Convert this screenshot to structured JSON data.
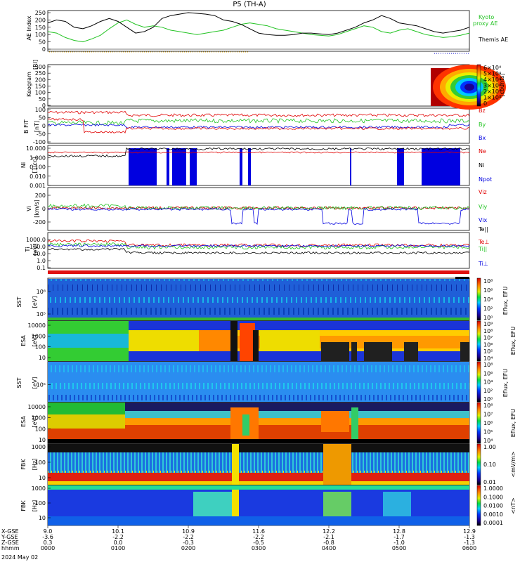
{
  "chart_data": {
    "type": "line",
    "title": "P5 (TH-A)",
    "date_label": "2024 May 02",
    "x_ticks": {
      "xgse": [
        "9.0",
        "10.1",
        "10.9",
        "11.6",
        "12.2",
        "12.8",
        "12.9"
      ],
      "ygse": [
        "-3.6",
        "-2.2",
        "-2.2",
        "-2.2",
        "-2.1",
        "-1.7",
        "-1.3"
      ],
      "zgse": [
        "0.3",
        "0.0",
        "-0.3",
        "-0.5",
        "-0.8",
        "-1.0",
        "-1.3"
      ],
      "hhmm": [
        "0000",
        "0100",
        "0200",
        "0300",
        "0400",
        "0500",
        "0600"
      ]
    },
    "x_row_labels": [
      "X-GSE",
      "Y-GSE",
      "Z-GSE",
      "hhmm"
    ],
    "panels": [
      {
        "id": "ae",
        "ylabel": "AE Index",
        "yticks": [
          "250",
          "200",
          "150",
          "100",
          "50",
          "0"
        ],
        "legend": [
          {
            "text": "Kyoto",
            "color": "#22c322"
          },
          {
            "text": "proxy AE",
            "color": "#22c322"
          },
          {
            "text": "Themis AE",
            "color": "#000000"
          }
        ],
        "series": [
          {
            "name": "Kyoto proxy AE",
            "color": "#22c322",
            "values": [
              120,
              110,
              80,
              60,
              50,
              70,
              95,
              140,
              180,
              200,
              170,
              150,
              160,
              150,
              130,
              120,
              110,
              100,
              110,
              120,
              130,
              150,
              170,
              180,
              170,
              160,
              140,
              130,
              120,
              110,
              100,
              95,
              90,
              100,
              120,
              140,
              160,
              150,
              120,
              110,
              130,
              140,
              120,
              100,
              90,
              80,
              85,
              95,
              110
            ]
          },
          {
            "name": "Themis AE",
            "color": "#000000",
            "values": [
              180,
              200,
              190,
              150,
              140,
              160,
              190,
              210,
              190,
              150,
              110,
              120,
              150,
              210,
              230,
              240,
              250,
              245,
              240,
              230,
              200,
              190,
              170,
              140,
              110,
              100,
              95,
              95,
              100,
              110,
              110,
              105,
              100,
              110,
              130,
              150,
              180,
              200,
              230,
              210,
              180,
              170,
              160,
              140,
              120,
              110,
              120,
              130,
              150
            ]
          }
        ]
      },
      {
        "id": "keogram",
        "ylabel": "Keogram",
        "yticks": [
          "300",
          "250",
          "200",
          "150",
          "100",
          "50",
          "0"
        ],
        "units": "[Rl]",
        "cbar_labels": [
          "6×10⁴",
          "5×10⁴",
          "4×10⁴",
          "3×10⁴",
          "2×10⁴",
          "1×10⁴",
          "0"
        ],
        "cbar_units": "[counts]"
      },
      {
        "id": "bfield",
        "ylabel": "B FIT",
        "units": "[nT]",
        "yticks": [
          "100",
          "50",
          "0",
          "-50",
          "-100"
        ],
        "legend": [
          {
            "text": "Bz",
            "color": "#e00000"
          },
          {
            "text": "By",
            "color": "#22c322"
          },
          {
            "text": "Bx",
            "color": "#0000e0"
          }
        ]
      },
      {
        "id": "density",
        "ylabel": "Ni",
        "units": "[1/cc]",
        "yticks": [
          "10.000",
          "1.000",
          "0.100",
          "0.010",
          "0.001"
        ],
        "legend": [
          {
            "text": "Ne",
            "color": "#e00000"
          },
          {
            "text": "Ni",
            "color": "#000000"
          },
          {
            "text": "Npot",
            "color": "#0000e0"
          }
        ]
      },
      {
        "id": "velocity",
        "ylabel": "Vi",
        "units": "[km/s]",
        "yticks": [
          "200",
          "0",
          "-200"
        ],
        "legend": [
          {
            "text": "Viz",
            "color": "#e00000"
          },
          {
            "text": "Viy",
            "color": "#22c322"
          },
          {
            "text": "Vix",
            "color": "#0000e0"
          },
          {
            "text": "Te||",
            "color": "#000000"
          }
        ]
      },
      {
        "id": "temperature",
        "ylabel": "Ti",
        "units": "[eV]",
        "yticks": [
          "1000.0",
          "100.0",
          "10.0",
          "1.0",
          "0.1"
        ],
        "legend": [
          {
            "text": "Te⊥",
            "color": "#e00000"
          },
          {
            "text": "Ti||",
            "color": "#22c322"
          },
          {
            "text": "Ti⊥",
            "color": "#0000e0"
          }
        ]
      },
      {
        "id": "sst_e",
        "ylabel": "SST",
        "units": "[eV]",
        "yticks": [
          "10⁶",
          "10⁵"
        ],
        "cbar_labels": [
          "10⁸",
          "10⁶",
          "10⁴",
          "10²",
          "10⁰"
        ],
        "cbar_units": "Eflux, EFU"
      },
      {
        "id": "esa_e",
        "ylabel": "ESA",
        "units": "[eV]",
        "yticks": [
          "10000",
          "1000",
          "100",
          "10"
        ],
        "cbar_labels": [
          "10⁹",
          "10⁸",
          "10⁷",
          "10⁶",
          "10⁵",
          "10⁴"
        ],
        "cbar_units": "Eflux, EFU"
      },
      {
        "id": "sst_i",
        "ylabel": "SST",
        "units": "[eV]",
        "yticks": [
          "10⁵"
        ],
        "cbar_labels": [
          "10⁸",
          "10⁶",
          "10⁴",
          "10²",
          "10⁰"
        ],
        "cbar_units": "Eflux, EFU"
      },
      {
        "id": "esa_i",
        "ylabel": "ESA",
        "units": "[eV]",
        "yticks": [
          "10000",
          "1000",
          "100",
          "10"
        ],
        "cbar_labels": [
          "10⁸",
          "10⁷",
          "10⁶",
          "10⁵",
          "10⁴"
        ],
        "cbar_units": "Eflux, EFU"
      },
      {
        "id": "fbk_e",
        "ylabel": "FBK",
        "units": "[Hz]",
        "yticks": [
          "1000",
          "100",
          "10"
        ],
        "cbar_labels": [
          "1.00",
          "0.10",
          "0.01"
        ],
        "cbar_units": "<mV/m>"
      },
      {
        "id": "fbk_b",
        "ylabel": "FBK",
        "units": "[Hz]",
        "yticks": [
          "1000",
          "100",
          "10"
        ],
        "cbar_labels": [
          "1.0000",
          "0.1000",
          "0.0100",
          "0.0010",
          "0.0001"
        ],
        "cbar_units": "<nT>"
      }
    ]
  }
}
